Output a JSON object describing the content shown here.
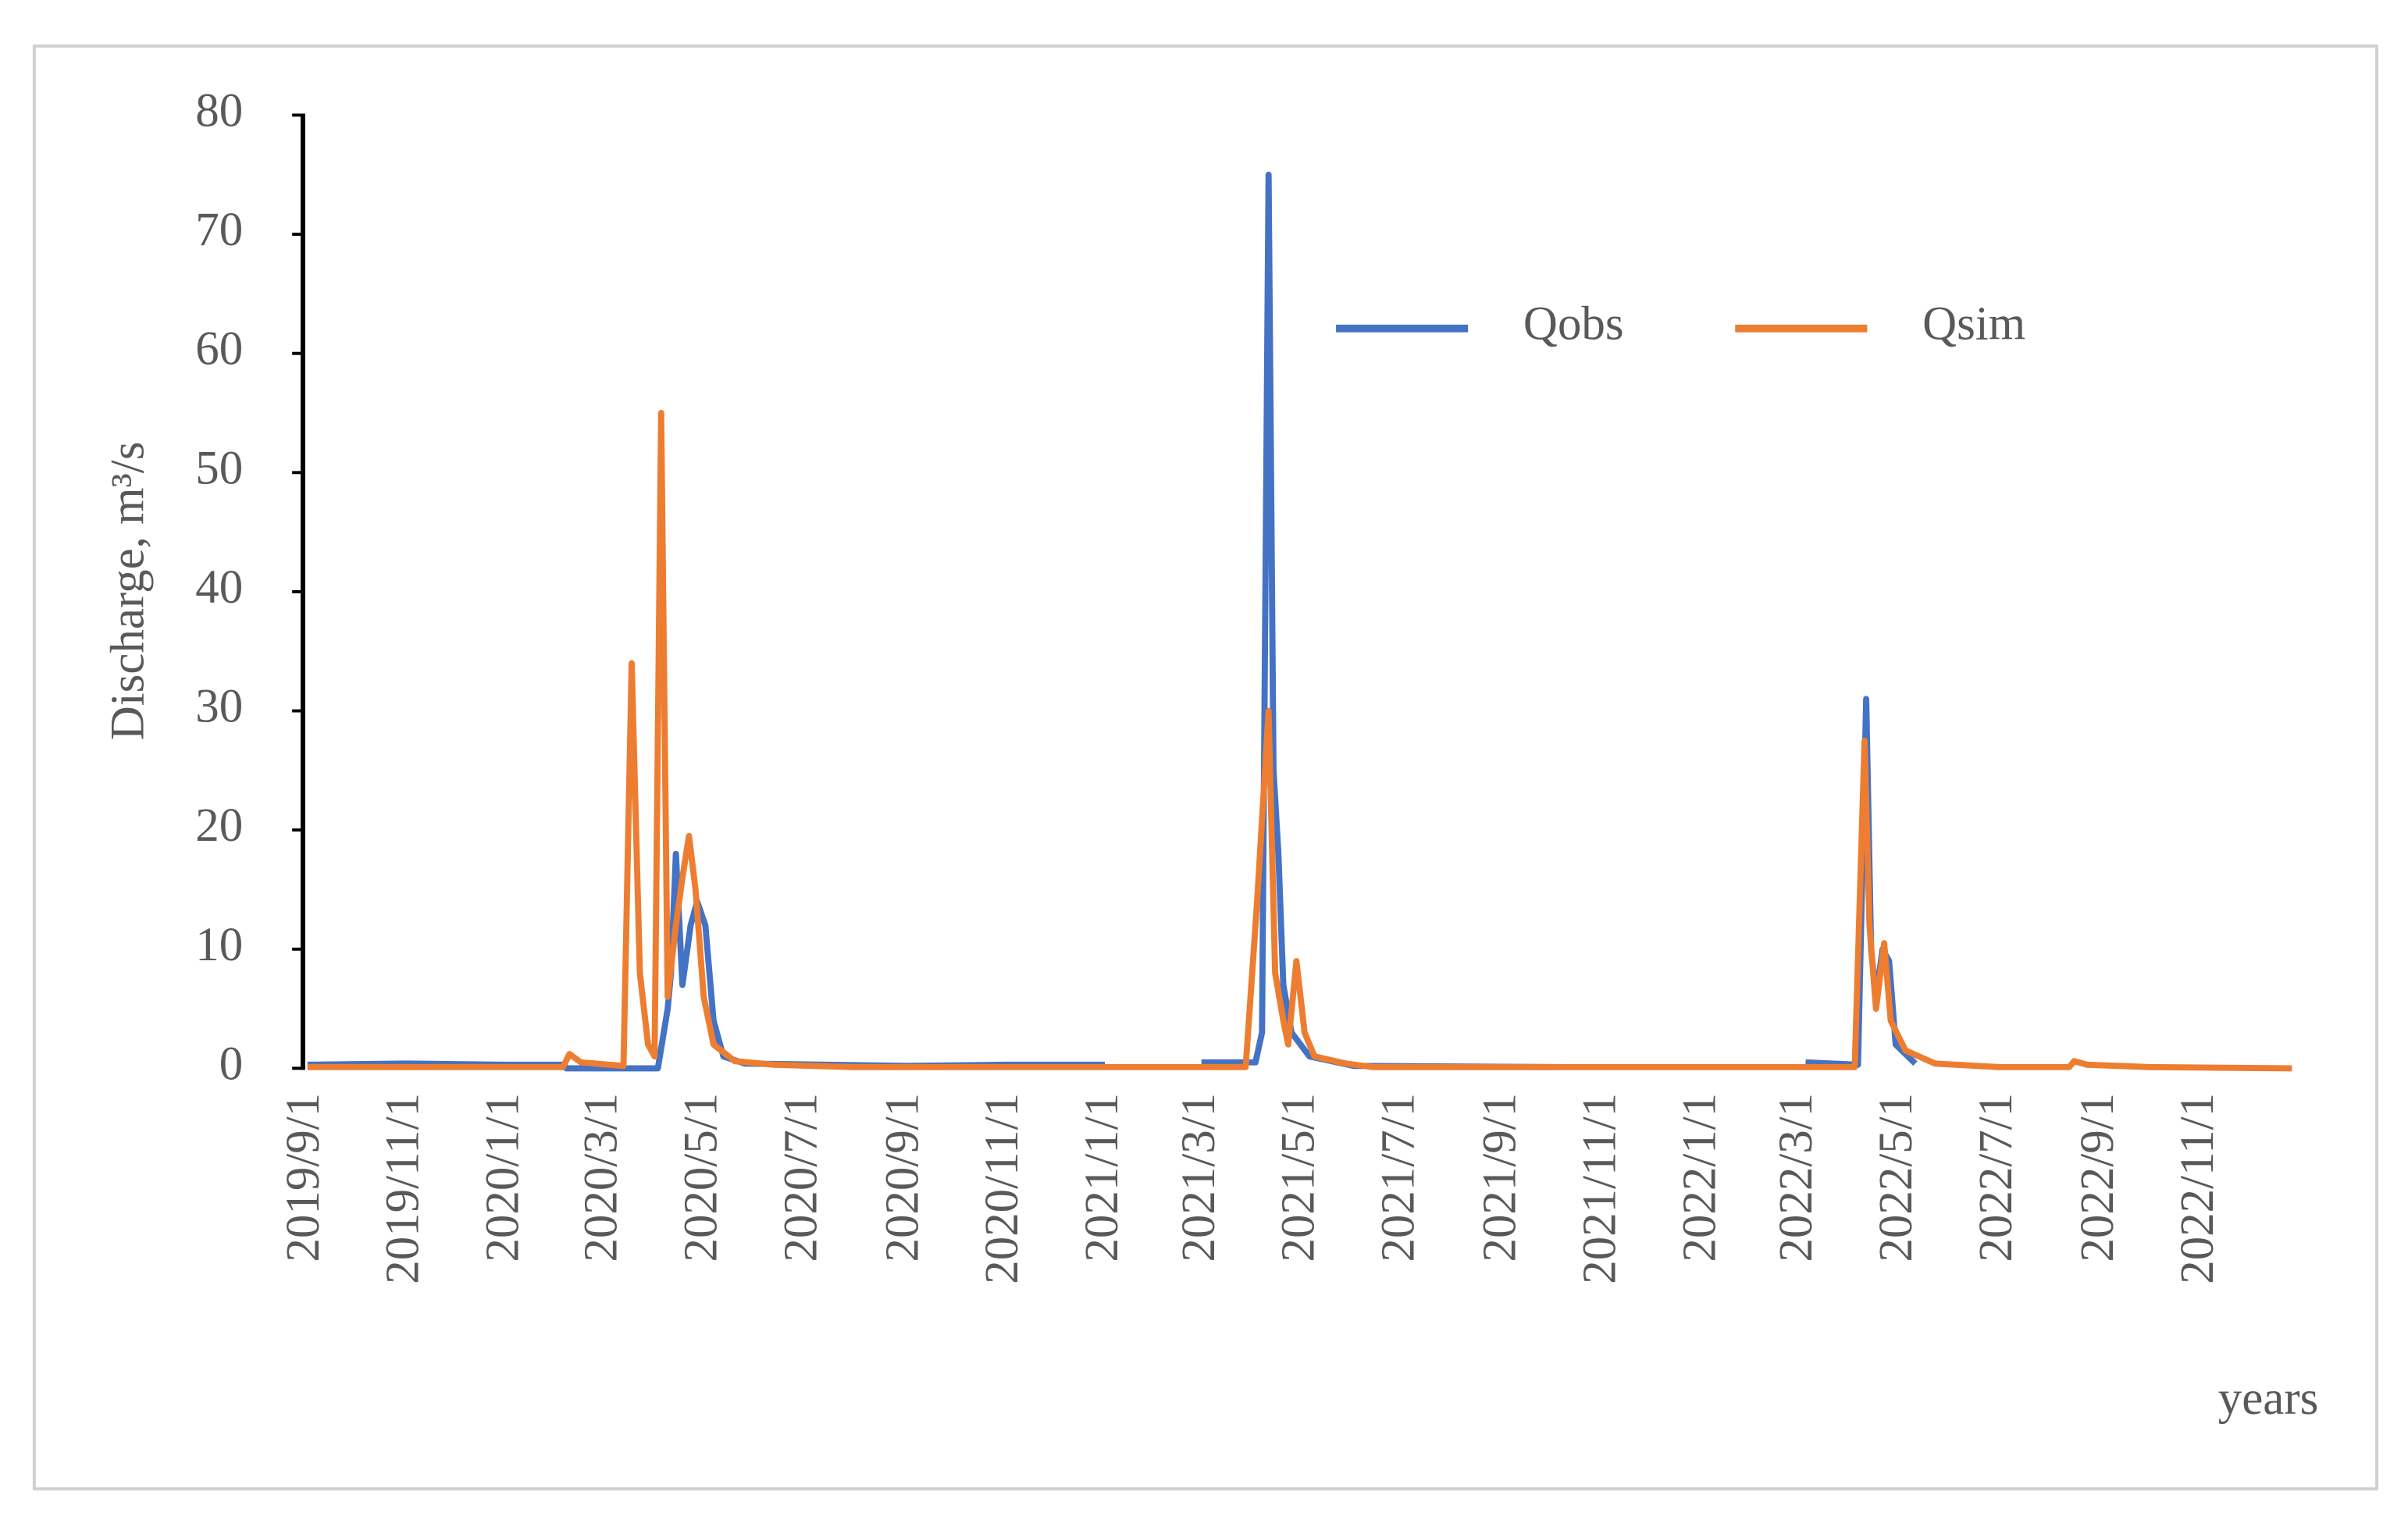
{
  "chart_data": {
    "type": "line",
    "y_label": "Discharge, m³/s",
    "x_label": "years",
    "xlim": [
      "2019/9/1",
      "2022/12/31"
    ],
    "xticks": [
      "2019/9/1",
      "2019/11/1",
      "2020/1/1",
      "2020/3/1",
      "2020/5/1",
      "2020/7/1",
      "2020/9/1",
      "2020/11/1",
      "2021/1/1",
      "2021/3/1",
      "2021/5/1",
      "2021/7/1",
      "2021/9/1",
      "2021/11/1",
      "2022/1/1",
      "2022/3/1",
      "2022/5/1",
      "2022/7/1",
      "2022/9/1",
      "2022/11/1"
    ],
    "ylim": [
      0,
      80
    ],
    "yticks": [
      0,
      10,
      20,
      30,
      40,
      50,
      60,
      70,
      80
    ],
    "legend": "top-right",
    "series": [
      {
        "name": "Qobs",
        "color": "#4472c4",
        "x": [
          "2019/9/1",
          "2019/11/1",
          "2020/1/1",
          "2020/2/5",
          "2020/2/6",
          "2020/4/2",
          "2020/4/8",
          "2020/4/10",
          "2020/4/13",
          "2020/4/17",
          "2020/4/22",
          "2020/4/26",
          "2020/5/1",
          "2020/5/6",
          "2020/5/12",
          "2020/5/25",
          "2020/9/1",
          "2020/11/1",
          "2020/12/31",
          "2021/1/30",
          "2021/2/28",
          "2021/4/2",
          "2021/4/6",
          "2021/4/10",
          "2021/4/13",
          "2021/4/16",
          "2021/4/19",
          "2021/4/24",
          "2021/5/5",
          "2021/6/1",
          "2021/10/1",
          "2022/1/15",
          "2022/3/4",
          "2022/4/5",
          "2022/4/10",
          "2022/4/13",
          "2022/4/16",
          "2022/4/20",
          "2022/4/24",
          "2022/4/28",
          "2022/5/10"
        ],
        "values": [
          0.3,
          0.4,
          0.3,
          0.3,
          0,
          0,
          5,
          8,
          18,
          7,
          12,
          14,
          12,
          4,
          1,
          0.4,
          0.2,
          0.3,
          0.3,
          null,
          0.5,
          0.5,
          3,
          75,
          25,
          18,
          7,
          3,
          1,
          0.2,
          0.1,
          null,
          0.5,
          0.3,
          31,
          10,
          6,
          10,
          9,
          2,
          0.4
        ]
      },
      {
        "name": "Qsim",
        "color": "#ed7d31",
        "x": [
          "2019/9/1",
          "2020/2/4",
          "2020/2/8",
          "2020/2/15",
          "2020/3/12",
          "2020/3/17",
          "2020/3/22",
          "2020/3/27",
          "2020/3/31",
          "2020/4/4",
          "2020/4/8",
          "2020/4/13",
          "2020/4/17",
          "2020/4/21",
          "2020/4/25",
          "2020/4/30",
          "2020/5/6",
          "2020/5/19",
          "2020/6/12",
          "2020/7/30",
          "2021/3/27",
          "2021/4/3",
          "2021/4/10",
          "2021/4/14",
          "2021/4/19",
          "2021/4/22",
          "2021/4/27",
          "2021/5/2",
          "2021/5/8",
          "2021/5/27",
          "2021/6/13",
          "2022/4/3",
          "2022/4/9",
          "2022/4/12",
          "2022/4/16",
          "2022/4/21",
          "2022/4/25",
          "2022/5/4",
          "2022/5/22",
          "2022/6/30",
          "2022/8/12",
          "2022/8/15",
          "2022/8/23",
          "2022/9/30",
          "2022/12/26"
        ],
        "values": [
          0.1,
          0.1,
          1.2,
          0.5,
          0.2,
          34,
          8,
          2,
          1,
          55,
          6,
          12,
          16,
          19.5,
          15,
          6,
          2,
          0.6,
          0.3,
          0.1,
          0.1,
          14,
          30,
          8,
          4,
          2,
          9,
          3,
          1,
          0.4,
          0.1,
          0.1,
          27.5,
          12,
          5,
          10.5,
          4,
          1.5,
          0.4,
          0.1,
          0.1,
          0.6,
          0.3,
          0.1,
          0
        ]
      }
    ]
  }
}
